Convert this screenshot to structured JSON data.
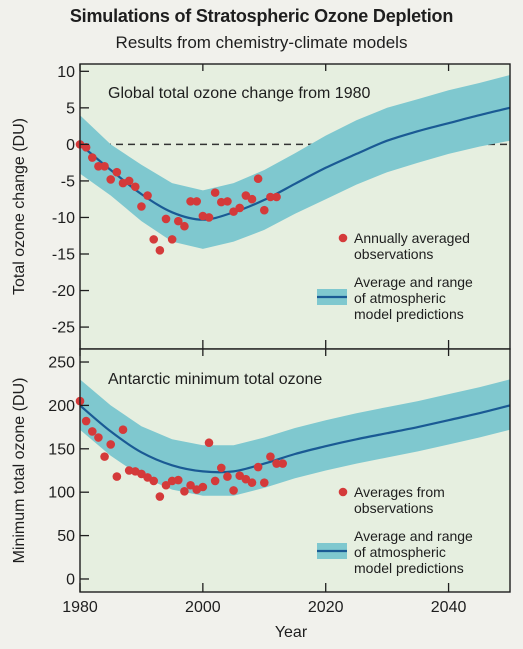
{
  "header": {
    "title": "Simulations of Stratospheric Ozone Depletion",
    "subtitle": "Results from chemistry-climate models"
  },
  "colors": {
    "background": "#f1f1ec",
    "panel": "#e6efe0",
    "band": "#7fc8cf",
    "line": "#1a5a94",
    "points": "#d43a3a"
  },
  "chart_data": [
    {
      "type": "line",
      "annotation": "Global total ozone change from 1980",
      "ylabel": "Total ozone change (DU)",
      "xlabel": "Year",
      "xlim": [
        1980,
        2050
      ],
      "ylim": [
        -28,
        11
      ],
      "yticks": [
        10,
        5,
        0,
        -5,
        -10,
        -15,
        -20,
        -25
      ],
      "xticks": [
        1980,
        2000,
        2020,
        2040
      ],
      "zero_line": "dashed",
      "legend": {
        "position": "bottom-right",
        "points_label": [
          "Annually averaged",
          "observations"
        ],
        "band_label": [
          "Average and range",
          "of atmospheric",
          "model predictions"
        ]
      },
      "model": {
        "x": [
          1980,
          1985,
          1990,
          1995,
          2000,
          2005,
          2010,
          2015,
          2020,
          2025,
          2030,
          2035,
          2040,
          2045,
          2050
        ],
        "mean": [
          0,
          -3.5,
          -6.8,
          -9.3,
          -10.3,
          -9.3,
          -7.6,
          -5.4,
          -3.2,
          -1.3,
          0.5,
          1.8,
          2.9,
          4,
          5
        ],
        "upper": [
          4,
          0,
          -2.8,
          -5.3,
          -6.3,
          -5.3,
          -3.5,
          -1.2,
          1.2,
          3.3,
          5,
          6.2,
          7.4,
          8.4,
          9.5
        ],
        "lower": [
          -4,
          -7,
          -10.5,
          -13.3,
          -14.3,
          -13.3,
          -11.7,
          -9.5,
          -7.5,
          -5.5,
          -3.8,
          -2.5,
          -1.3,
          -0.3,
          0.5
        ]
      },
      "observations": {
        "x": [
          1980,
          1981,
          1982,
          1983,
          1984,
          1985,
          1986,
          1987,
          1988,
          1989,
          1990,
          1991,
          1992,
          1993,
          1994,
          1995,
          1996,
          1997,
          1998,
          1999,
          2000,
          2001,
          2002,
          2003,
          2004,
          2005,
          2006,
          2007,
          2008,
          2009,
          2010,
          2011,
          2012
        ],
        "y": [
          0,
          -0.4,
          -1.8,
          -3,
          -3,
          -4.8,
          -3.8,
          -5.3,
          -5,
          -5.8,
          -8.5,
          -7,
          -13,
          -14.5,
          -10.2,
          -13,
          -10.5,
          -11.2,
          -7.8,
          -7.8,
          -9.8,
          -10,
          -6.6,
          -7.9,
          -7.8,
          -9.2,
          -8.7,
          -7,
          -7.5,
          -4.7,
          -9,
          -7.2,
          -7.2
        ]
      }
    },
    {
      "type": "line",
      "annotation": "Antarctic minimum total ozone",
      "ylabel": "Minimum total ozone (DU)",
      "xlabel": "Year",
      "xlim": [
        1980,
        2050
      ],
      "ylim": [
        -15,
        265
      ],
      "yticks": [
        250,
        200,
        150,
        100,
        50,
        0
      ],
      "xticks": [
        1980,
        2000,
        2020,
        2040
      ],
      "legend": {
        "position": "bottom-right",
        "points_label": [
          "Averages from",
          "observations"
        ],
        "band_label": [
          "Average and range",
          "of atmospheric",
          "model predictions"
        ]
      },
      "model": {
        "x": [
          1980,
          1985,
          1990,
          1995,
          2000,
          2005,
          2010,
          2015,
          2020,
          2025,
          2030,
          2035,
          2040,
          2045,
          2050
        ],
        "mean": [
          200,
          170,
          146,
          131,
          124,
          124,
          133,
          144,
          153,
          161,
          168,
          175,
          183,
          191,
          200
        ],
        "upper": [
          230,
          200,
          176,
          161,
          154,
          154,
          163,
          174,
          183,
          191,
          198,
          205,
          213,
          221,
          230
        ],
        "lower": [
          172,
          142,
          118,
          103,
          96,
          96,
          105,
          116,
          125,
          133,
          140,
          147,
          155,
          163,
          172
        ]
      },
      "observations": {
        "x": [
          1980,
          1981,
          1982,
          1983,
          1984,
          1985,
          1986,
          1987,
          1988,
          1989,
          1990,
          1991,
          1992,
          1993,
          1994,
          1995,
          1996,
          1997,
          1998,
          1999,
          2000,
          2001,
          2002,
          2003,
          2004,
          2005,
          2006,
          2007,
          2008,
          2009,
          2010,
          2011,
          2012,
          2013
        ],
        "y": [
          205,
          182,
          170,
          163,
          141,
          155,
          118,
          172,
          125,
          124,
          121,
          117,
          113,
          95,
          108,
          113,
          114,
          101,
          108,
          103,
          106,
          157,
          113,
          128,
          118,
          102,
          119,
          115,
          111,
          129,
          111,
          141,
          133,
          133
        ]
      }
    }
  ],
  "x_axis": {
    "ticks": [
      "1980",
      "2000",
      "2020",
      "2040"
    ],
    "label": "Year"
  }
}
